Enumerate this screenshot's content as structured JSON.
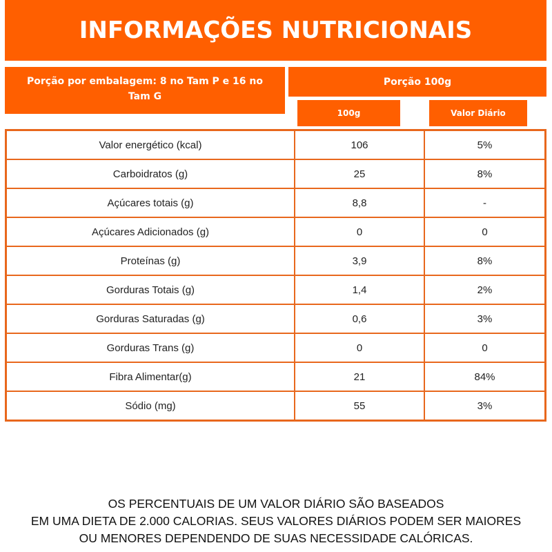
{
  "title": "INFORMAÇÕES NUTRICIONAIS",
  "portion_per_package": "Porção por embalagem: 8 no Tam P e 16 no Tam G",
  "portion": "Porção  100g",
  "columns": [
    "100g",
    "Valor Diário"
  ],
  "rows": [
    [
      "Valor energético (kcal)",
      "106",
      "5%"
    ],
    [
      "Carboidratos (g)",
      "25",
      "8%"
    ],
    [
      "Açúcares totais (g)",
      "8,8",
      "-"
    ],
    [
      "Açúcares Adicionados (g)",
      "0",
      "0"
    ],
    [
      "Proteínas (g)",
      "3,9",
      "8%"
    ],
    [
      "Gorduras Totais (g)",
      "1,4",
      "2%"
    ],
    [
      "Gorduras Saturadas (g)",
      "0,6",
      "3%"
    ],
    [
      "Gorduras Trans (g)",
      "0",
      "0"
    ],
    [
      "Fibra Alimentar(g)",
      "21",
      "84%"
    ],
    [
      "Sódio (mg)",
      "55",
      "3%"
    ]
  ],
  "footnote": [
    "OS PERCENTUAIS DE UM VALOR DIÁRIO SÃO BASEADOS",
    "EM UMA DIETA DE 2.000 CALORIAS. SEUS VALORES DIÁRIOS PODEM SER MAIORES",
    "OU MENORES DEPENDENDO DE SUAS NECESSIDADE CALÓRICAS."
  ],
  "colors": {
    "accent": "#ff5f00",
    "border": "#e8671c"
  }
}
